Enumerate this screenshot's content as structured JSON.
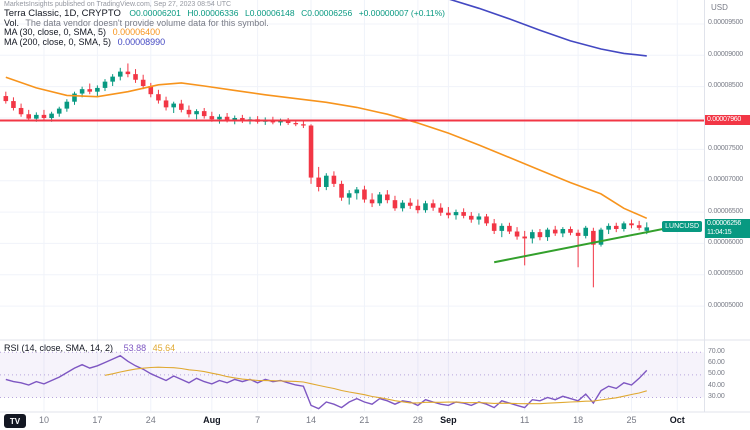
{
  "header": {
    "attribution": "MarketsInsights published on TradingView.com, Sep 27, 2023 08:54 UTC"
  },
  "legend": {
    "symbol_line": "Terra Classic, 1D, CRYPTO",
    "ohlc": {
      "o": "O0.00006201",
      "h": "H0.00006336",
      "l": "L0.00006148",
      "c": "C0.00006256",
      "change": "+0.00000007 (+0.11%)"
    },
    "volume_label": "Vol.",
    "volume_note": "The data vendor doesn't provide volume data for this symbol.",
    "ma30": {
      "label": "MA (30, close, 0, SMA, 5)",
      "value": "0.00006400"
    },
    "ma200": {
      "label": "MA (200, close, 0, SMA, 5)",
      "value": "0.00008990"
    },
    "rsi": {
      "label": "RSI (14, close, SMA, 14, 2)",
      "value": "53.88",
      "ma_value": "45.64"
    }
  },
  "axis": {
    "currency": "USD"
  },
  "price_labels": {
    "resistance": "0.00007960",
    "current": "0.00006256",
    "countdown": "11:04:15",
    "symbol_tag": "LUNCUSD"
  },
  "watermark_logo": "TV",
  "chart_data": {
    "type": "candlestick",
    "title": "Terra Classic (LUNC/USD), 1D candles with MA30, MA200, horizontal resistance at 0.00007960, rising green trendline, RSI(14) pane",
    "symbol": "LUNCUSD",
    "interval": "1D",
    "price_unit": 1e-08,
    "main_ylim": [
      4460,
      9850
    ],
    "rsi_ylim": [
      18,
      80
    ],
    "colors": {
      "up": "#089981",
      "down": "#f23645"
    },
    "current_price": 6256,
    "price_ticks": [
      {
        "v": 9500
      },
      {
        "v": 9000
      },
      {
        "v": 8500
      },
      {
        "v": 8000,
        "hide": true
      },
      {
        "v": 7500
      },
      {
        "v": 7000
      },
      {
        "v": 6500
      },
      {
        "v": 6000
      },
      {
        "v": 5500
      },
      {
        "v": 5000
      }
    ],
    "rsi_ticks": [
      70,
      60,
      50,
      40,
      30
    ],
    "rsi_band": [
      30,
      70
    ],
    "x_ticks": [
      {
        "i": 5,
        "label": "10"
      },
      {
        "i": 12,
        "label": "17"
      },
      {
        "i": 19,
        "label": "24"
      },
      {
        "i": 27,
        "label": "Aug",
        "strong": true
      },
      {
        "i": 33,
        "label": "7"
      },
      {
        "i": 40,
        "label": "14"
      },
      {
        "i": 47,
        "label": "21"
      },
      {
        "i": 54,
        "label": "28"
      },
      {
        "i": 58,
        "label": "Sep",
        "strong": true
      },
      {
        "i": 68,
        "label": "11"
      },
      {
        "i": 75,
        "label": "18"
      },
      {
        "i": 82,
        "label": "25"
      },
      {
        "i": 88,
        "label": "Oct",
        "strong": true
      }
    ],
    "candles": [
      [
        8350,
        8420,
        8230,
        8270
      ],
      [
        8270,
        8330,
        8120,
        8160
      ],
      [
        8160,
        8230,
        8020,
        8060
      ],
      [
        8060,
        8130,
        7950,
        7990
      ],
      [
        7990,
        8090,
        7940,
        8050
      ],
      [
        8050,
        8130,
        7960,
        8000
      ],
      [
        8000,
        8100,
        7940,
        8070
      ],
      [
        8070,
        8180,
        8020,
        8150
      ],
      [
        8150,
        8300,
        8100,
        8260
      ],
      [
        8260,
        8420,
        8210,
        8390
      ],
      [
        8390,
        8500,
        8330,
        8460
      ],
      [
        8460,
        8550,
        8380,
        8420
      ],
      [
        8420,
        8520,
        8350,
        8480
      ],
      [
        8480,
        8620,
        8430,
        8580
      ],
      [
        8580,
        8700,
        8510,
        8660
      ],
      [
        8660,
        8800,
        8600,
        8740
      ],
      [
        8740,
        8870,
        8650,
        8700
      ],
      [
        8700,
        8780,
        8560,
        8610
      ],
      [
        8610,
        8690,
        8460,
        8510
      ],
      [
        8510,
        8560,
        8330,
        8380
      ],
      [
        8380,
        8450,
        8230,
        8280
      ],
      [
        8280,
        8340,
        8120,
        8170
      ],
      [
        8170,
        8260,
        8080,
        8230
      ],
      [
        8230,
        8290,
        8090,
        8130
      ],
      [
        8130,
        8200,
        8010,
        8060
      ],
      [
        8060,
        8140,
        7980,
        8110
      ],
      [
        8110,
        8160,
        7990,
        8030
      ],
      [
        8030,
        8100,
        7940,
        7980
      ],
      [
        7980,
        8060,
        7910,
        8020
      ],
      [
        8020,
        8080,
        7930,
        7960
      ],
      [
        7960,
        8040,
        7900,
        8000
      ],
      [
        8000,
        8050,
        7920,
        7950
      ],
      [
        7950,
        8020,
        7900,
        7980
      ],
      [
        7980,
        8030,
        7910,
        7940
      ],
      [
        7940,
        8010,
        7890,
        7970
      ],
      [
        7970,
        8020,
        7900,
        7930
      ],
      [
        7930,
        7990,
        7880,
        7950
      ],
      [
        7950,
        8000,
        7890,
        7920
      ],
      [
        7920,
        7970,
        7870,
        7900
      ],
      [
        7900,
        7960,
        7840,
        7880
      ],
      [
        7880,
        7900,
        6950,
        7050
      ],
      [
        7050,
        7220,
        6830,
        6900
      ],
      [
        6900,
        7120,
        6850,
        7080
      ],
      [
        7080,
        7150,
        6900,
        6950
      ],
      [
        6950,
        7000,
        6680,
        6730
      ],
      [
        6730,
        6850,
        6620,
        6800
      ],
      [
        6800,
        6900,
        6700,
        6860
      ],
      [
        6860,
        6920,
        6650,
        6700
      ],
      [
        6700,
        6800,
        6580,
        6640
      ],
      [
        6640,
        6820,
        6600,
        6780
      ],
      [
        6780,
        6850,
        6640,
        6690
      ],
      [
        6690,
        6760,
        6520,
        6560
      ],
      [
        6560,
        6690,
        6510,
        6650
      ],
      [
        6650,
        6720,
        6550,
        6600
      ],
      [
        6600,
        6700,
        6480,
        6530
      ],
      [
        6530,
        6680,
        6490,
        6640
      ],
      [
        6640,
        6700,
        6520,
        6570
      ],
      [
        6570,
        6640,
        6440,
        6490
      ],
      [
        6490,
        6580,
        6400,
        6450
      ],
      [
        6450,
        6540,
        6380,
        6500
      ],
      [
        6500,
        6560,
        6400,
        6440
      ],
      [
        6440,
        6500,
        6330,
        6380
      ],
      [
        6380,
        6480,
        6300,
        6430
      ],
      [
        6430,
        6470,
        6280,
        6320
      ],
      [
        6320,
        6390,
        6150,
        6200
      ],
      [
        6200,
        6320,
        6100,
        6280
      ],
      [
        6280,
        6330,
        6150,
        6190
      ],
      [
        6190,
        6260,
        6060,
        6110
      ],
      [
        6110,
        6200,
        5650,
        6080
      ],
      [
        6080,
        6220,
        6000,
        6180
      ],
      [
        6180,
        6230,
        6050,
        6100
      ],
      [
        6100,
        6250,
        6040,
        6220
      ],
      [
        6220,
        6280,
        6120,
        6160
      ],
      [
        6160,
        6260,
        6100,
        6230
      ],
      [
        6230,
        6270,
        6130,
        6170
      ],
      [
        6170,
        6220,
        5620,
        6120
      ],
      [
        6120,
        6280,
        6080,
        6250
      ],
      [
        6200,
        6250,
        5300,
        5980
      ],
      [
        5980,
        6250,
        5950,
        6220
      ],
      [
        6220,
        6320,
        6150,
        6280
      ],
      [
        6280,
        6330,
        6180,
        6230
      ],
      [
        6230,
        6350,
        6190,
        6320
      ],
      [
        6320,
        6380,
        6240,
        6290
      ],
      [
        6290,
        6360,
        6210,
        6249
      ],
      [
        6201,
        6336,
        6148,
        6256
      ]
    ],
    "overlays": [
      {
        "name": "MA 30",
        "color": "#f7941d",
        "points": [
          [
            0,
            8650
          ],
          [
            4,
            8480
          ],
          [
            8,
            8360
          ],
          [
            12,
            8340
          ],
          [
            16,
            8420
          ],
          [
            20,
            8530
          ],
          [
            23,
            8560
          ],
          [
            26,
            8510
          ],
          [
            30,
            8440
          ],
          [
            34,
            8370
          ],
          [
            38,
            8310
          ],
          [
            42,
            8250
          ],
          [
            46,
            8170
          ],
          [
            50,
            8060
          ],
          [
            54,
            7920
          ],
          [
            58,
            7760
          ],
          [
            62,
            7570
          ],
          [
            66,
            7370
          ],
          [
            70,
            7170
          ],
          [
            74,
            6970
          ],
          [
            78,
            6790
          ],
          [
            81,
            6560
          ],
          [
            84,
            6400
          ]
        ]
      },
      {
        "name": "MA 200",
        "color": "#4348c2",
        "points": [
          [
            58,
            9900
          ],
          [
            62,
            9750
          ],
          [
            66,
            9580
          ],
          [
            70,
            9400
          ],
          [
            74,
            9230
          ],
          [
            78,
            9100
          ],
          [
            81,
            9030
          ],
          [
            84,
            8990
          ]
        ]
      }
    ],
    "hline": {
      "value": 7960,
      "color": "#f23645"
    },
    "trendline": {
      "points": [
        [
          64,
          5700
        ],
        [
          89,
          6300
        ]
      ],
      "color": "#33a02c"
    },
    "rsi": {
      "color": "#7e57c2",
      "ma_color": "#e0a932",
      "ma_length": 14,
      "values": [
        46,
        44,
        43,
        41,
        44,
        42,
        45,
        48,
        52,
        56,
        59,
        56,
        58,
        61,
        64,
        67,
        62,
        58,
        55,
        51,
        48,
        45,
        49,
        46,
        43,
        47,
        44,
        42,
        45,
        43,
        46,
        44,
        46,
        43,
        46,
        44,
        45,
        43,
        41,
        40,
        23,
        20,
        26,
        24,
        21,
        26,
        29,
        26,
        24,
        29,
        27,
        24,
        27,
        26,
        23,
        28,
        26,
        24,
        23,
        26,
        25,
        23,
        26,
        24,
        21,
        27,
        25,
        23,
        21,
        28,
        27,
        30,
        28,
        31,
        29,
        27,
        33,
        25,
        36,
        40,
        38,
        43,
        41,
        47,
        54
      ]
    }
  }
}
